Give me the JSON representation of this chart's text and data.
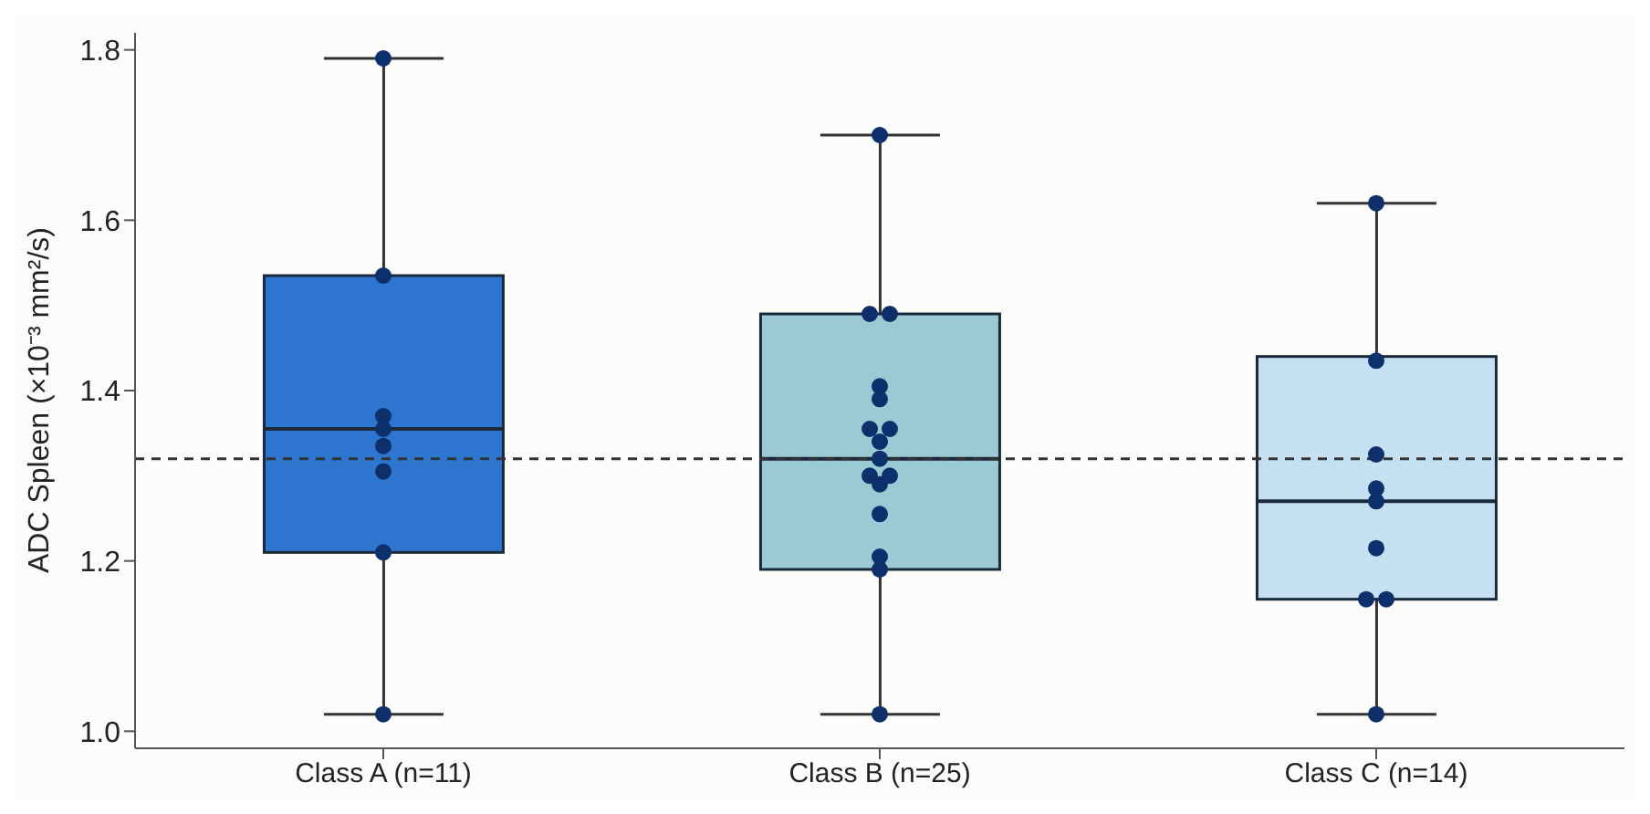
{
  "chart_data": {
    "type": "box",
    "ylabel": "ADC Spleen (×10⁻³ mm²/s)",
    "categories": [
      "Class A (n=11)",
      "Class B (n=25)",
      "Class C (n=14)"
    ],
    "colors": [
      "#2e75d0",
      "#9ccad4",
      "#c6e0f3"
    ],
    "boxes": [
      {
        "low": 1.02,
        "q1": 1.21,
        "median": 1.355,
        "q3": 1.535,
        "high": 1.79
      },
      {
        "low": 1.02,
        "q1": 1.19,
        "median": 1.32,
        "q3": 1.49,
        "high": 1.7
      },
      {
        "low": 1.02,
        "q1": 1.155,
        "median": 1.27,
        "q3": 1.44,
        "high": 1.62
      }
    ],
    "series": [
      {
        "type": "scatter",
        "color": "#0d2f6b",
        "x": [
          "Class A (n=11)",
          "Class A (n=11)",
          "Class A (n=11)",
          "Class A (n=11)",
          "Class A (n=11)",
          "Class A (n=11)",
          "Class A (n=11)",
          "Class A (n=11)",
          "Class B (n=25)",
          "Class B (n=25)",
          "Class B (n=25)",
          "Class B (n=25)",
          "Class B (n=25)",
          "Class B (n=25)",
          "Class B (n=25)",
          "Class B (n=25)",
          "Class B (n=25)",
          "Class B (n=25)",
          "Class B (n=25)",
          "Class B (n=25)",
          "Class B (n=25)",
          "Class B (n=25)",
          "Class B (n=25)",
          "Class B (n=25)",
          "Class C (n=14)",
          "Class C (n=14)",
          "Class C (n=14)",
          "Class C (n=14)",
          "Class C (n=14)",
          "Class C (n=14)",
          "Class C (n=14)",
          "Class C (n=14)",
          "Class C (n=14)"
        ],
        "values": [
          1.79,
          1.535,
          1.37,
          1.355,
          1.335,
          1.305,
          1.21,
          1.02,
          1.7,
          1.49,
          1.49,
          1.405,
          1.39,
          1.355,
          1.355,
          1.34,
          1.32,
          1.3,
          1.3,
          1.29,
          1.255,
          1.205,
          1.19,
          1.02,
          1.62,
          1.435,
          1.325,
          1.285,
          1.27,
          1.215,
          1.155,
          1.155,
          1.02
        ]
      }
    ],
    "ylim": [
      0.98,
      1.82
    ],
    "yticks": [
      {
        "value": 1,
        "label": "1.0"
      },
      1.2,
      1.4,
      1.6,
      1.8
    ],
    "ref_lines": [
      {
        "axis": "y",
        "value": 1.32,
        "line_style": "dashed",
        "color": "#333333"
      }
    ],
    "grid": false,
    "legend": false,
    "marker": "circle"
  }
}
